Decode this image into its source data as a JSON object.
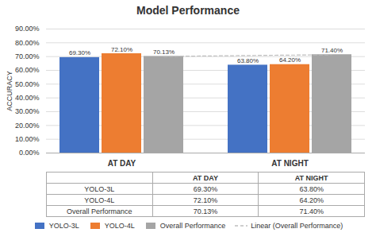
{
  "chart_data": {
    "type": "bar",
    "title": "Model Performance",
    "ylabel": "ACCURACY",
    "categories": [
      "AT DAY",
      "AT NIGHT"
    ],
    "series": [
      {
        "name": "YOLO-3L",
        "color": "#4472C4",
        "values": [
          0.693,
          0.638
        ],
        "value_labels": [
          "69.30%",
          "63.80%"
        ]
      },
      {
        "name": "YOLO-4L",
        "color": "#ED7D31",
        "values": [
          0.721,
          0.642
        ],
        "value_labels": [
          "72.10%",
          "64.20%"
        ]
      },
      {
        "name": "Overall Performance",
        "color": "#A5A5A5",
        "values": [
          0.7013,
          0.714
        ],
        "value_labels": [
          "70.13%",
          "71.40%"
        ]
      },
      {
        "name": "Linear (Overall Performance)",
        "type": "line",
        "line_style": "dashed",
        "color": "#BFBFBF",
        "values": [
          0.7013,
          0.714
        ]
      }
    ],
    "ylim": [
      0.0,
      0.9
    ],
    "yticks": [
      {
        "value": 0.0,
        "label": "0.00%"
      },
      {
        "value": 0.1,
        "label": "10.00%"
      },
      {
        "value": 0.2,
        "label": "20.00%"
      },
      {
        "value": 0.3,
        "label": "30.00%"
      },
      {
        "value": 0.4,
        "label": "40.00%"
      },
      {
        "value": 0.5,
        "label": "50.00%"
      },
      {
        "value": 0.6,
        "label": "60.00%"
      },
      {
        "value": 0.7,
        "label": "70.00%"
      },
      {
        "value": 0.8,
        "label": "80.00%"
      },
      {
        "value": 0.9,
        "label": "90.00%"
      }
    ],
    "grid": true,
    "data_labels": true,
    "legend": "bottom"
  }
}
